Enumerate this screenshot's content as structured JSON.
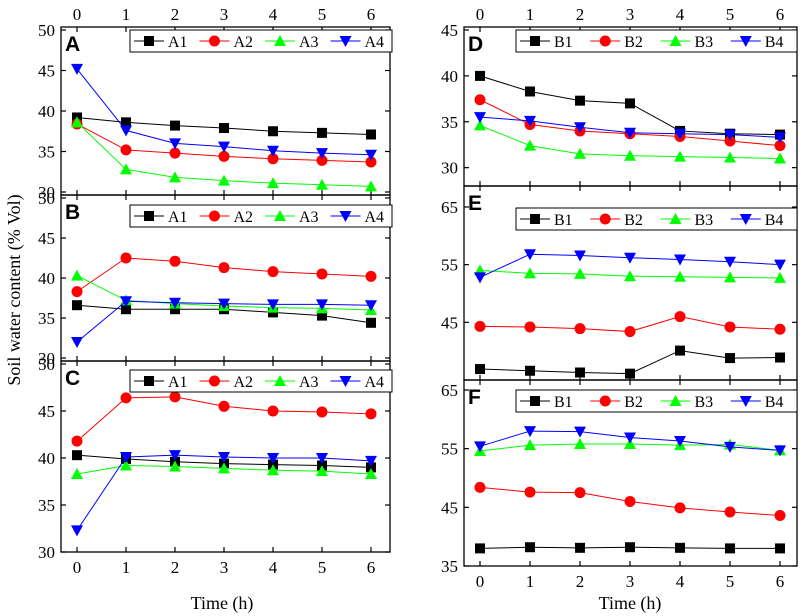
{
  "figure": {
    "xlabel": "Time (h)",
    "ylabel": "Soil water content (% Vol)"
  },
  "chart_data": [
    {
      "type": "line",
      "panel": "A",
      "group": "left",
      "title": "",
      "xlabel": "Time (h)",
      "ylabel": "Soil water content (% Vol)",
      "x": [
        0,
        1,
        2,
        3,
        4,
        5,
        6
      ],
      "xlim": [
        0,
        6
      ],
      "ylim": [
        30,
        50
      ],
      "yticks": [
        30,
        35,
        40,
        45,
        50
      ],
      "series": [
        {
          "name": "A1",
          "color": "#000000",
          "marker": "square",
          "values": [
            39.2,
            38.6,
            38.2,
            37.9,
            37.5,
            37.3,
            37.1
          ]
        },
        {
          "name": "A2",
          "color": "#ff0000",
          "marker": "circle",
          "values": [
            38.4,
            35.2,
            34.8,
            34.4,
            34.1,
            33.9,
            33.7
          ]
        },
        {
          "name": "A3",
          "color": "#00ff00",
          "marker": "triangle-up",
          "values": [
            38.6,
            32.8,
            31.8,
            31.4,
            31.1,
            30.9,
            30.7
          ]
        },
        {
          "name": "A4",
          "color": "#0000ff",
          "marker": "triangle-down",
          "values": [
            45.2,
            37.6,
            36.0,
            35.6,
            35.1,
            34.8,
            34.6
          ]
        }
      ]
    },
    {
      "type": "line",
      "panel": "B",
      "group": "left",
      "title": "",
      "xlabel": "Time (h)",
      "ylabel": "Soil water content (% Vol)",
      "x": [
        0,
        1,
        2,
        3,
        4,
        5,
        6
      ],
      "xlim": [
        0,
        6
      ],
      "ylim": [
        30,
        50
      ],
      "yticks": [
        30,
        35,
        40,
        45,
        50
      ],
      "series": [
        {
          "name": "A1",
          "color": "#000000",
          "marker": "square",
          "values": [
            36.6,
            36.1,
            36.1,
            36.1,
            35.7,
            35.3,
            34.4
          ]
        },
        {
          "name": "A2",
          "color": "#ff0000",
          "marker": "circle",
          "values": [
            38.3,
            42.5,
            42.1,
            41.3,
            40.8,
            40.5,
            40.2
          ]
        },
        {
          "name": "A3",
          "color": "#00ff00",
          "marker": "triangle-up",
          "values": [
            40.3,
            37.2,
            36.8,
            36.5,
            36.3,
            36.2,
            36.0
          ]
        },
        {
          "name": "A4",
          "color": "#0000ff",
          "marker": "triangle-down",
          "values": [
            32.0,
            37.1,
            36.9,
            36.8,
            36.7,
            36.7,
            36.6
          ]
        }
      ]
    },
    {
      "type": "line",
      "panel": "C",
      "group": "left",
      "title": "",
      "xlabel": "Time (h)",
      "ylabel": "Soil water content (% Vol)",
      "x": [
        0,
        1,
        2,
        3,
        4,
        5,
        6
      ],
      "xlim": [
        0,
        6
      ],
      "ylim": [
        30,
        50
      ],
      "yticks": [
        30,
        35,
        40,
        45,
        50
      ],
      "series": [
        {
          "name": "A1",
          "color": "#000000",
          "marker": "square",
          "values": [
            40.3,
            39.9,
            39.6,
            39.4,
            39.3,
            39.2,
            39.0
          ]
        },
        {
          "name": "A2",
          "color": "#ff0000",
          "marker": "circle",
          "values": [
            41.8,
            46.4,
            46.5,
            45.5,
            45.0,
            44.9,
            44.7
          ]
        },
        {
          "name": "A3",
          "color": "#00ff00",
          "marker": "triangle-up",
          "values": [
            38.3,
            39.2,
            39.1,
            38.9,
            38.7,
            38.6,
            38.3
          ]
        },
        {
          "name": "A4",
          "color": "#0000ff",
          "marker": "triangle-down",
          "values": [
            32.3,
            40.1,
            40.3,
            40.1,
            40.0,
            40.0,
            39.7
          ]
        }
      ]
    },
    {
      "type": "line",
      "panel": "D",
      "group": "right",
      "title": "",
      "xlabel": "Time (h)",
      "ylabel": "Soil water content (% Vol)",
      "x": [
        0,
        1,
        2,
        3,
        4,
        5,
        6
      ],
      "xlim": [
        0,
        6
      ],
      "ylim": [
        28,
        45
      ],
      "yticks": [
        30,
        35,
        40,
        45
      ],
      "series": [
        {
          "name": "B1",
          "color": "#000000",
          "marker": "square",
          "values": [
            40.0,
            38.3,
            37.3,
            37.0,
            34.0,
            33.7,
            33.6
          ]
        },
        {
          "name": "B2",
          "color": "#ff0000",
          "marker": "circle",
          "values": [
            37.4,
            34.7,
            34.0,
            33.7,
            33.4,
            32.9,
            32.4
          ]
        },
        {
          "name": "B3",
          "color": "#00ff00",
          "marker": "triangle-up",
          "values": [
            34.6,
            32.4,
            31.5,
            31.3,
            31.2,
            31.1,
            31.0
          ]
        },
        {
          "name": "B4",
          "color": "#0000ff",
          "marker": "triangle-down",
          "values": [
            35.5,
            35.1,
            34.4,
            33.8,
            33.7,
            33.6,
            33.3
          ]
        }
      ]
    },
    {
      "type": "line",
      "panel": "E",
      "group": "right",
      "title": "",
      "xlabel": "Time (h)",
      "ylabel": "Soil water content (% Vol)",
      "x": [
        0,
        1,
        2,
        3,
        4,
        5,
        6
      ],
      "xlim": [
        0,
        6
      ],
      "ylim": [
        35,
        65
      ],
      "yticks": [
        45,
        55,
        65
      ],
      "series": [
        {
          "name": "B1",
          "color": "#000000",
          "marker": "square",
          "values": [
            36.9,
            36.6,
            36.3,
            36.1,
            40.1,
            38.8,
            38.9
          ]
        },
        {
          "name": "B2",
          "color": "#ff0000",
          "marker": "circle",
          "values": [
            44.3,
            44.2,
            43.9,
            43.4,
            46.0,
            44.2,
            43.8
          ]
        },
        {
          "name": "B3",
          "color": "#00ff00",
          "marker": "triangle-up",
          "values": [
            54.0,
            53.5,
            53.4,
            53.0,
            52.9,
            52.8,
            52.7
          ]
        },
        {
          "name": "B4",
          "color": "#0000ff",
          "marker": "triangle-down",
          "values": [
            52.8,
            56.8,
            56.6,
            56.2,
            55.9,
            55.5,
            55.0
          ]
        }
      ]
    },
    {
      "type": "line",
      "panel": "F",
      "group": "right",
      "title": "",
      "xlabel": "Time (h)",
      "ylabel": "Soil water content (% Vol)",
      "x": [
        0,
        1,
        2,
        3,
        4,
        5,
        6
      ],
      "xlim": [
        0,
        6
      ],
      "ylim": [
        35,
        65
      ],
      "yticks": [
        35,
        45,
        55,
        65
      ],
      "series": [
        {
          "name": "B1",
          "color": "#000000",
          "marker": "square",
          "values": [
            38.0,
            38.2,
            38.1,
            38.2,
            38.1,
            38.0,
            38.0
          ]
        },
        {
          "name": "B2",
          "color": "#ff0000",
          "marker": "circle",
          "values": [
            48.4,
            47.6,
            47.5,
            46.0,
            44.9,
            44.2,
            43.6
          ]
        },
        {
          "name": "B3",
          "color": "#00ff00",
          "marker": "triangle-up",
          "values": [
            54.6,
            55.6,
            55.8,
            55.8,
            55.6,
            55.7,
            54.7
          ]
        },
        {
          "name": "B4",
          "color": "#0000ff",
          "marker": "triangle-down",
          "values": [
            55.4,
            58.0,
            57.9,
            56.9,
            56.3,
            55.3,
            54.7
          ]
        }
      ]
    }
  ]
}
